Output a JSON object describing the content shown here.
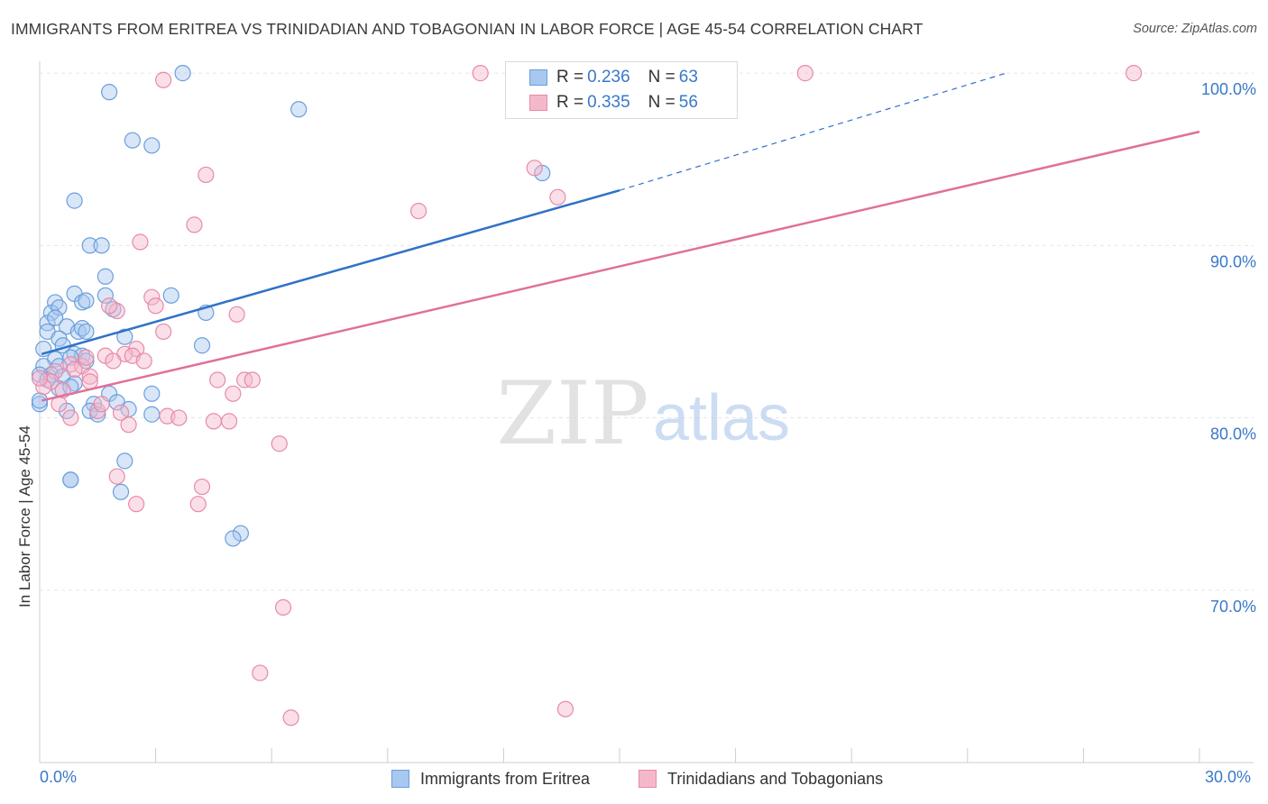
{
  "title": "IMMIGRANTS FROM ERITREA VS TRINIDADIAN AND TOBAGONIAN IN LABOR FORCE | AGE 45-54 CORRELATION CHART",
  "source": "Source: ZipAtlas.com",
  "watermark": {
    "zip": "ZIP",
    "atlas": "atlas"
  },
  "legend": {
    "rows": [
      {
        "r_key": "R =",
        "r_val": "0.236",
        "n_key": "N =",
        "n_val": "63"
      },
      {
        "r_key": "R =",
        "r_val": "0.335",
        "n_key": "N =",
        "n_val": "56"
      }
    ]
  },
  "bottom_legend": {
    "s1": "Immigrants from Eritrea",
    "s2": "Trinidadians and Tobagonians"
  },
  "colors": {
    "blue_fill": "#a8c8ef",
    "blue_stroke": "#6a9fdc",
    "blue_line": "#2f72c9",
    "pink_fill": "#f5b8cb",
    "pink_stroke": "#e88aa8",
    "pink_line": "#e0709a",
    "tick_label": "#3a78c9",
    "grid": "#e6e6e6"
  },
  "chart_data": {
    "type": "scatter",
    "title": "IMMIGRANTS FROM ERITREA VS TRINIDADIAN AND TOBAGONIAN IN LABOR FORCE | AGE 45-54 CORRELATION CHART",
    "xlabel": "",
    "ylabel": "In Labor Force | Age 45-54",
    "xlim": [
      0,
      30
    ],
    "ylim": [
      60.0,
      101.0
    ],
    "x_tick_labels": [
      "0.0%",
      "30.0%"
    ],
    "y_ticks": [
      70,
      80,
      90,
      100
    ],
    "y_tick_labels": [
      "70.0%",
      "80.0%",
      "90.0%",
      "100.0%"
    ],
    "grid": true,
    "legend_position": "top-center",
    "series": [
      {
        "name": "Immigrants from Eritrea",
        "r": 0.236,
        "n": 63,
        "trend": {
          "x0": 0.05,
          "y0": 83.7,
          "x1": 15.0,
          "y1": 93.2,
          "dash_to_x": 25.0,
          "dash_to_y": 100.0
        },
        "points": [
          [
            3.7,
            100.0
          ],
          [
            1.8,
            98.9
          ],
          [
            6.7,
            97.9
          ],
          [
            2.4,
            96.1
          ],
          [
            2.9,
            95.8
          ],
          [
            13.0,
            94.2
          ],
          [
            0.9,
            92.6
          ],
          [
            1.3,
            90.0
          ],
          [
            1.6,
            90.0
          ],
          [
            1.7,
            88.2
          ],
          [
            0.4,
            86.7
          ],
          [
            0.9,
            87.2
          ],
          [
            1.7,
            87.1
          ],
          [
            3.4,
            87.1
          ],
          [
            0.3,
            86.1
          ],
          [
            0.5,
            86.4
          ],
          [
            1.1,
            86.7
          ],
          [
            1.2,
            86.8
          ],
          [
            1.9,
            86.3
          ],
          [
            4.3,
            86.1
          ],
          [
            0.2,
            85.5
          ],
          [
            0.4,
            85.8
          ],
          [
            0.7,
            85.3
          ],
          [
            0.2,
            85.0
          ],
          [
            1.0,
            85.0
          ],
          [
            1.1,
            85.2
          ],
          [
            1.2,
            85.0
          ],
          [
            2.2,
            84.7
          ],
          [
            0.5,
            84.6
          ],
          [
            0.6,
            84.2
          ],
          [
            4.2,
            84.2
          ],
          [
            0.1,
            84.0
          ],
          [
            0.9,
            83.7
          ],
          [
            1.1,
            83.6
          ],
          [
            0.4,
            83.4
          ],
          [
            0.8,
            83.5
          ],
          [
            1.2,
            83.3
          ],
          [
            0.1,
            83.0
          ],
          [
            0.5,
            83.0
          ],
          [
            0.0,
            82.5
          ],
          [
            0.3,
            82.5
          ],
          [
            0.6,
            82.4
          ],
          [
            0.2,
            82.2
          ],
          [
            0.9,
            82.0
          ],
          [
            0.5,
            81.7
          ],
          [
            0.8,
            81.8
          ],
          [
            1.8,
            81.4
          ],
          [
            2.9,
            81.4
          ],
          [
            2.0,
            80.9
          ],
          [
            1.4,
            80.8
          ],
          [
            0.0,
            80.8
          ],
          [
            0.7,
            80.4
          ],
          [
            1.3,
            80.4
          ],
          [
            1.5,
            80.2
          ],
          [
            2.3,
            80.5
          ],
          [
            2.9,
            80.2
          ],
          [
            2.2,
            77.5
          ],
          [
            0.8,
            76.4
          ],
          [
            0.8,
            76.4
          ],
          [
            2.1,
            75.7
          ],
          [
            5.2,
            73.3
          ],
          [
            5.0,
            73.0
          ],
          [
            0.0,
            81.0
          ]
        ]
      },
      {
        "name": "Trinidadians and Tobagonians",
        "r": 0.335,
        "n": 56,
        "trend": {
          "x0": 0.05,
          "y0": 81.0,
          "x1": 30.0,
          "y1": 96.6
        },
        "points": [
          [
            11.4,
            100.0
          ],
          [
            19.8,
            100.0
          ],
          [
            28.3,
            100.0
          ],
          [
            3.2,
            99.6
          ],
          [
            12.8,
            94.5
          ],
          [
            4.3,
            94.1
          ],
          [
            13.4,
            92.8
          ],
          [
            9.8,
            92.0
          ],
          [
            4.0,
            91.2
          ],
          [
            2.6,
            90.2
          ],
          [
            2.9,
            87.0
          ],
          [
            3.0,
            86.5
          ],
          [
            2.0,
            86.2
          ],
          [
            5.1,
            86.0
          ],
          [
            1.8,
            86.5
          ],
          [
            3.2,
            85.0
          ],
          [
            2.5,
            84.0
          ],
          [
            2.2,
            83.7
          ],
          [
            2.4,
            83.6
          ],
          [
            1.7,
            83.6
          ],
          [
            1.9,
            83.3
          ],
          [
            2.7,
            83.3
          ],
          [
            0.8,
            83.1
          ],
          [
            1.1,
            83.0
          ],
          [
            1.2,
            83.5
          ],
          [
            0.9,
            82.8
          ],
          [
            0.4,
            82.7
          ],
          [
            1.3,
            82.4
          ],
          [
            4.6,
            82.2
          ],
          [
            5.3,
            82.2
          ],
          [
            5.5,
            82.2
          ],
          [
            1.3,
            82.1
          ],
          [
            0.3,
            82.1
          ],
          [
            0.1,
            81.8
          ],
          [
            0.6,
            81.6
          ],
          [
            5.0,
            81.4
          ],
          [
            0.5,
            80.8
          ],
          [
            2.1,
            80.3
          ],
          [
            3.3,
            80.1
          ],
          [
            3.6,
            80.0
          ],
          [
            4.5,
            79.8
          ],
          [
            4.9,
            79.8
          ],
          [
            0.8,
            80.0
          ],
          [
            1.5,
            80.4
          ],
          [
            2.3,
            79.6
          ],
          [
            6.2,
            78.5
          ],
          [
            2.0,
            76.6
          ],
          [
            4.2,
            76.0
          ],
          [
            2.5,
            75.0
          ],
          [
            4.1,
            75.0
          ],
          [
            6.3,
            69.0
          ],
          [
            5.7,
            65.2
          ],
          [
            6.5,
            62.6
          ],
          [
            13.6,
            63.1
          ],
          [
            1.6,
            80.8
          ],
          [
            0.0,
            82.3
          ]
        ]
      }
    ]
  }
}
